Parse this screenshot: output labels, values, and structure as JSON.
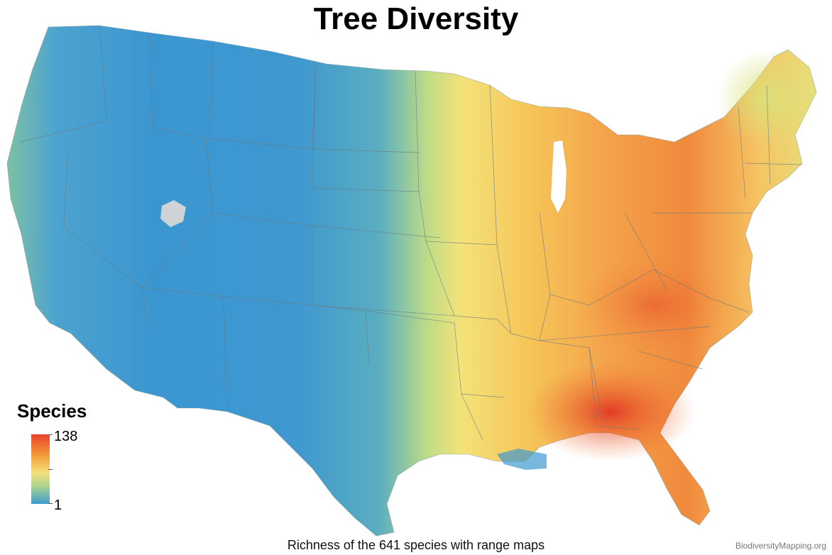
{
  "title": "Tree Diversity",
  "subtitle": "Richness of the 641 species with range maps",
  "credit": "BiodiversityMapping.org",
  "legend": {
    "title": "Species",
    "max_label": "138",
    "min_label": "1",
    "max_value": 138,
    "min_value": 1,
    "colors": [
      "#3e9ad0",
      "#a9d390",
      "#f6e07a",
      "#f39a3a",
      "#e8432b"
    ]
  }
}
